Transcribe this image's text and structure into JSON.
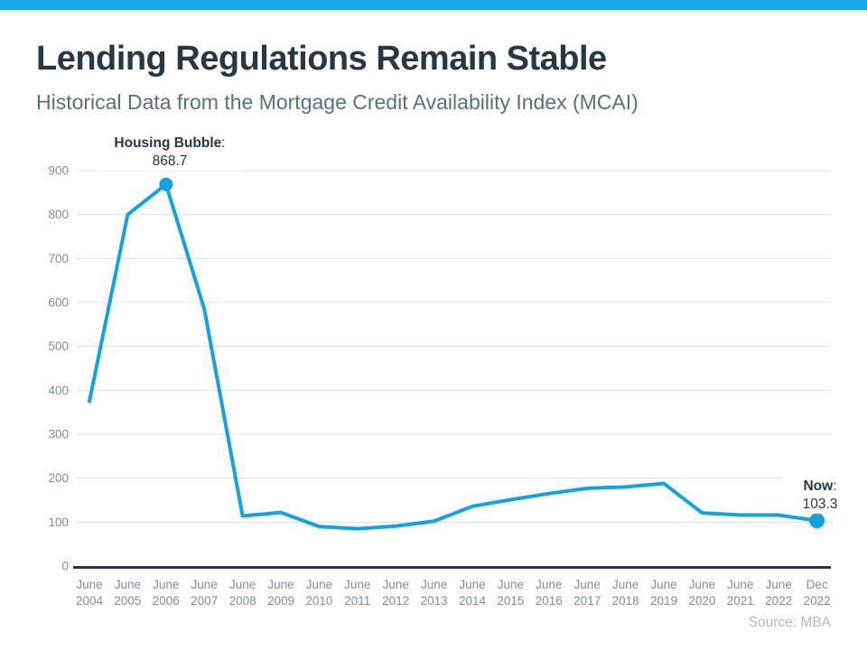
{
  "header": {
    "title": "Lending Regulations Remain Stable",
    "subtitle": "Historical Data from the Mortgage Credit Availability Index (MCAI)"
  },
  "chart_data": {
    "type": "line",
    "title": "Lending Regulations Remain Stable",
    "subtitle": "Historical Data from the Mortgage Credit Availability Index (MCAI)",
    "categories": [
      "June 2004",
      "June 2005",
      "June 2006",
      "June 2007",
      "June 2008",
      "June 2009",
      "June 2010",
      "June 2011",
      "June 2012",
      "June 2013",
      "June 2014",
      "June 2015",
      "June 2016",
      "June 2017",
      "June 2018",
      "June 2019",
      "June 2020",
      "June 2021",
      "June 2022",
      "Dec 2022"
    ],
    "series": [
      {
        "name": "Mortgage Credit Availability Index",
        "values": [
          375,
          800,
          868.7,
          585,
          114,
          122,
          90,
          85,
          91,
          102,
          136,
          151,
          165,
          177,
          180,
          188,
          121,
          116,
          116,
          103.3
        ]
      }
    ],
    "xlabel": "",
    "ylabel": "",
    "ylim": [
      0,
      900
    ],
    "ytick_interval": 100,
    "grid": true,
    "legend_position": "none",
    "annotations": [
      {
        "label": "Housing Bubble",
        "colon": ":",
        "value": "868.7",
        "point_index": 2
      },
      {
        "label": "Now",
        "colon": ":",
        "value": "103.3",
        "point_index": 19
      }
    ],
    "source": "Source: MBA"
  },
  "colors": {
    "accent_bar": "#18a9ea",
    "line": "#13a3e2",
    "title_text": "#273744",
    "subtitle_text": "#5d6f7b",
    "axis_text": "#7f8d9a",
    "gridline": "#dde0e3",
    "axis_line": "#2a3743",
    "source_text": "#b0bcc6"
  }
}
